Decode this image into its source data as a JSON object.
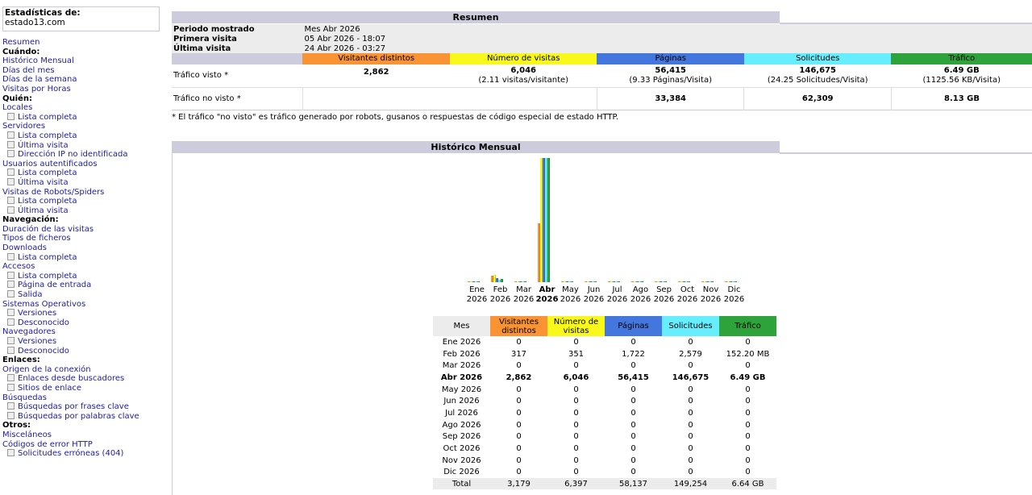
{
  "sidebar": {
    "title": "Estadísticas de:",
    "site": "estado13.com",
    "menu": [
      {
        "text": "Resumen",
        "kind": "link"
      },
      {
        "text": "Cuándo:",
        "kind": "hdr"
      },
      {
        "text": "Histórico Mensual",
        "kind": "link"
      },
      {
        "text": "Días del mes",
        "kind": "link"
      },
      {
        "text": "Días de la semana",
        "kind": "link"
      },
      {
        "text": "Visitas por Horas",
        "kind": "link"
      },
      {
        "text": "Quién:",
        "kind": "hdr"
      },
      {
        "text": "Locales",
        "kind": "link"
      },
      {
        "text": "Lista completa",
        "kind": "sub"
      },
      {
        "text": "Servidores",
        "kind": "link"
      },
      {
        "text": "Lista completa",
        "kind": "sub"
      },
      {
        "text": "Última visita",
        "kind": "sub"
      },
      {
        "text": "Dirección IP no identificada",
        "kind": "sub"
      },
      {
        "text": "Usuarios autentificados",
        "kind": "link"
      },
      {
        "text": "Lista completa",
        "kind": "sub"
      },
      {
        "text": "Última visita",
        "kind": "sub"
      },
      {
        "text": "Visitas de Robots/Spiders",
        "kind": "link"
      },
      {
        "text": "Lista completa",
        "kind": "sub"
      },
      {
        "text": "Última visita",
        "kind": "sub"
      },
      {
        "text": "Navegación:",
        "kind": "hdr"
      },
      {
        "text": "Duración de las visitas",
        "kind": "link"
      },
      {
        "text": "Tipos de ficheros",
        "kind": "link"
      },
      {
        "text": "Downloads",
        "kind": "link"
      },
      {
        "text": "Lista completa",
        "kind": "sub"
      },
      {
        "text": "Accesos",
        "kind": "link"
      },
      {
        "text": "Lista completa",
        "kind": "sub"
      },
      {
        "text": "Página de entrada",
        "kind": "sub"
      },
      {
        "text": "Salida",
        "kind": "sub"
      },
      {
        "text": "Sistemas Operativos",
        "kind": "link"
      },
      {
        "text": "Versiones",
        "kind": "sub"
      },
      {
        "text": "Desconocido",
        "kind": "sub"
      },
      {
        "text": "Navegadores",
        "kind": "link"
      },
      {
        "text": "Versiones",
        "kind": "sub"
      },
      {
        "text": "Desconocido",
        "kind": "sub"
      },
      {
        "text": "Enlaces:",
        "kind": "hdr"
      },
      {
        "text": "Origen de la conexión",
        "kind": "link"
      },
      {
        "text": "Enlaces desde buscadores",
        "kind": "sub"
      },
      {
        "text": "Sitios de enlace",
        "kind": "sub"
      },
      {
        "text": "Búsquedas",
        "kind": "link"
      },
      {
        "text": "Búsquedas por frases clave",
        "kind": "sub"
      },
      {
        "text": "Búsquedas por palabras clave",
        "kind": "sub"
      },
      {
        "text": "Otros:",
        "kind": "hdr"
      },
      {
        "text": "Misceláneos",
        "kind": "link"
      },
      {
        "text": "Códigos de error HTTP",
        "kind": "link"
      },
      {
        "text": "Solicitudes erróneas (404)",
        "kind": "sub"
      }
    ]
  },
  "summary": {
    "title": "Resumen",
    "period_label": "Periodo mostrado",
    "period_value": "Mes Abr 2026",
    "first_label": "Primera visita",
    "first_value": "05 Abr 2026 - 18:07",
    "last_label": "Última visita",
    "last_value": "24 Abr 2026 - 03:27",
    "headers": {
      "visitors": "Visitantes distintos",
      "visits": "Número de visitas",
      "pages": "Páginas",
      "requests": "Solicitudes",
      "traffic": "Tráfico"
    },
    "seen": {
      "label": "Tráfico visto *",
      "visitors": "2,862",
      "visits": "6,046",
      "visits_sub": "(2.11 visitas/visitante)",
      "pages": "56,415",
      "pages_sub": "(9.33 Páginas/Visita)",
      "requests": "146,675",
      "requests_sub": "(24.25 Solicitudes/Visita)",
      "traffic": "6.49 GB",
      "traffic_sub": "(1125.56 KB/Visita)"
    },
    "unseen": {
      "label": "Tráfico no visto *",
      "pages": "33,384",
      "requests": "62,309",
      "traffic": "8.13 GB"
    },
    "note": "* El tráfico \"no visto\" es tráfico generado por robots, gusanos o respuestas de código especial de estado HTTP."
  },
  "history": {
    "title": "Histórico Mensual",
    "headers": {
      "month": "Mes",
      "visitors": "Visitantes distintos",
      "visits": "Número de visitas",
      "pages": "Páginas",
      "requests": "Solicitudes",
      "traffic": "Tráfico"
    },
    "total_label": "Total",
    "totals": {
      "visitors": "3,179",
      "visits": "6,397",
      "pages": "58,137",
      "requests": "149,254",
      "traffic": "6.64 GB"
    },
    "rows": [
      {
        "month": "Ene 2026",
        "visitors": "0",
        "visits": "0",
        "pages": "0",
        "requests": "0",
        "traffic": "0"
      },
      {
        "month": "Feb 2026",
        "visitors": "317",
        "visits": "351",
        "pages": "1,722",
        "requests": "2,579",
        "traffic": "152.20 MB"
      },
      {
        "month": "Mar 2026",
        "visitors": "0",
        "visits": "0",
        "pages": "0",
        "requests": "0",
        "traffic": "0"
      },
      {
        "month": "Abr 2026",
        "visitors": "2,862",
        "visits": "6,046",
        "pages": "56,415",
        "requests": "146,675",
        "traffic": "6.49 GB",
        "current": true
      },
      {
        "month": "May 2026",
        "visitors": "0",
        "visits": "0",
        "pages": "0",
        "requests": "0",
        "traffic": "0"
      },
      {
        "month": "Jun 2026",
        "visitors": "0",
        "visits": "0",
        "pages": "0",
        "requests": "0",
        "traffic": "0"
      },
      {
        "month": "Jul 2026",
        "visitors": "0",
        "visits": "0",
        "pages": "0",
        "requests": "0",
        "traffic": "0"
      },
      {
        "month": "Ago 2026",
        "visitors": "0",
        "visits": "0",
        "pages": "0",
        "requests": "0",
        "traffic": "0"
      },
      {
        "month": "Sep 2026",
        "visitors": "0",
        "visits": "0",
        "pages": "0",
        "requests": "0",
        "traffic": "0"
      },
      {
        "month": "Oct 2026",
        "visitors": "0",
        "visits": "0",
        "pages": "0",
        "requests": "0",
        "traffic": "0"
      },
      {
        "month": "Nov 2026",
        "visitors": "0",
        "visits": "0",
        "pages": "0",
        "requests": "0",
        "traffic": "0"
      },
      {
        "month": "Dic 2026",
        "visitors": "0",
        "visits": "0",
        "pages": "0",
        "requests": "0",
        "traffic": "0"
      }
    ]
  },
  "chart_data": {
    "type": "bar",
    "categories": [
      {
        "m": "Ene",
        "y": "2026"
      },
      {
        "m": "Feb",
        "y": "2026"
      },
      {
        "m": "Mar",
        "y": "2026"
      },
      {
        "m": "Abr",
        "y": "2026"
      },
      {
        "m": "May",
        "y": "2026"
      },
      {
        "m": "Jun",
        "y": "2026"
      },
      {
        "m": "Jul",
        "y": "2026"
      },
      {
        "m": "Ago",
        "y": "2026"
      },
      {
        "m": "Sep",
        "y": "2026"
      },
      {
        "m": "Oct",
        "y": "2026"
      },
      {
        "m": "Nov",
        "y": "2026"
      },
      {
        "m": "Dic",
        "y": "2026"
      }
    ],
    "current_index": 3,
    "series_left": [
      {
        "key": "visitors",
        "color": "#f99333",
        "values": [
          0,
          317,
          0,
          2862,
          0,
          0,
          0,
          0,
          0,
          0,
          0,
          0
        ]
      },
      {
        "key": "visits",
        "color": "#f8f81a",
        "values": [
          0,
          351,
          0,
          6046,
          0,
          0,
          0,
          0,
          0,
          0,
          0,
          0
        ]
      }
    ],
    "series_right": [
      {
        "key": "pages",
        "color": "#4477dd",
        "values": [
          0,
          1722,
          0,
          56415,
          0,
          0,
          0,
          0,
          0,
          0,
          0,
          0
        ]
      },
      {
        "key": "requests",
        "color": "#66eeff",
        "values": [
          0,
          2579,
          0,
          146675,
          0,
          0,
          0,
          0,
          0,
          0,
          0,
          0
        ]
      },
      {
        "key": "traffic_gb",
        "color": "#2ea33b",
        "values": [
          0,
          0.1486,
          0,
          6.49,
          0,
          0,
          0,
          0,
          0,
          0,
          0,
          0
        ]
      }
    ]
  }
}
